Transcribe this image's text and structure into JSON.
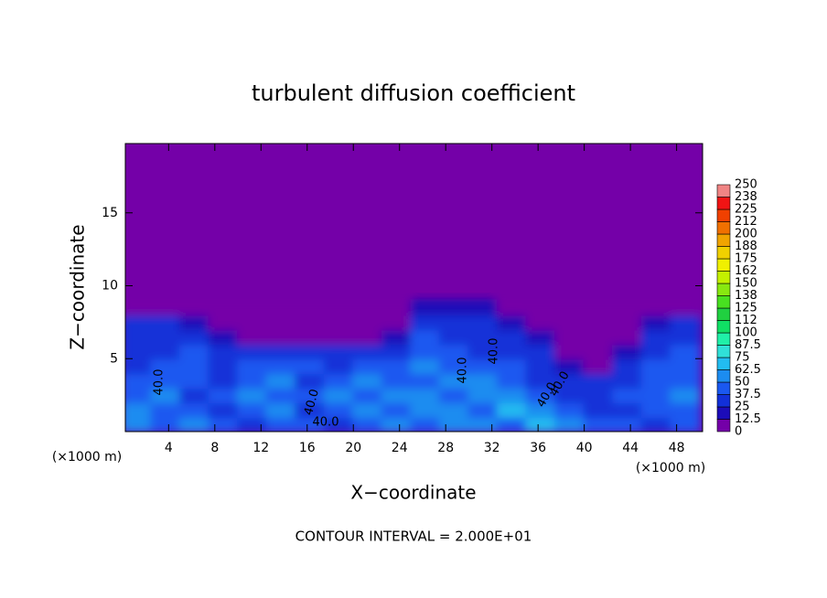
{
  "chart_data": {
    "type": "contour",
    "title": "turbulent diffusion coefficient",
    "x_label": "X−coordinate",
    "y_label": "Z−coordinate",
    "x_unit": "(×1000 m)",
    "x_unit_right": "(×1000 m)",
    "footer": "CONTOUR INTERVAL = 2.000E+01",
    "xlim": [
      0.25,
      50.25
    ],
    "ylim": [
      0,
      19.75
    ],
    "xticks": [
      4,
      8,
      12,
      16,
      20,
      24,
      28,
      32,
      36,
      40,
      44,
      48
    ],
    "yticks": [
      5,
      10,
      15
    ],
    "contour_labels": [
      "40.0",
      "40.0",
      "40.0",
      "40.0",
      "40.0",
      "40.0",
      "40.0"
    ],
    "field": {
      "x": [
        1.25,
        3.75,
        6.25,
        8.75,
        11.25,
        13.75,
        16.25,
        18.75,
        21.25,
        23.75,
        26.25,
        28.75,
        31.25,
        33.75,
        36.25,
        38.75,
        41.25,
        43.75,
        46.25,
        48.75
      ],
      "z": [
        0.5,
        1.5,
        2.5,
        3.5,
        4.5,
        5.5,
        6.5,
        7.5,
        8.5
      ],
      "values": [
        [
          55,
          45,
          50,
          40,
          35,
          45,
          40,
          35,
          45,
          50,
          40,
          60,
          55,
          45,
          70,
          50,
          45,
          40,
          35,
          40
        ],
        [
          50,
          40,
          45,
          35,
          45,
          55,
          35,
          40,
          55,
          45,
          60,
          50,
          45,
          65,
          50,
          40,
          35,
          30,
          40,
          45
        ],
        [
          45,
          50,
          35,
          40,
          55,
          40,
          45,
          50,
          40,
          55,
          50,
          45,
          60,
          50,
          40,
          30,
          35,
          40,
          45,
          50
        ],
        [
          40,
          45,
          40,
          35,
          45,
          50,
          35,
          45,
          55,
          40,
          45,
          55,
          50,
          45,
          35,
          30,
          25,
          35,
          45,
          40
        ],
        [
          35,
          40,
          45,
          30,
          40,
          45,
          40,
          35,
          45,
          40,
          50,
          45,
          40,
          40,
          30,
          20,
          10,
          30,
          40,
          45
        ],
        [
          35,
          35,
          40,
          30,
          35,
          35,
          30,
          30,
          30,
          35,
          45,
          40,
          35,
          35,
          25,
          10,
          0,
          20,
          35,
          40
        ],
        [
          35,
          30,
          30,
          20,
          10,
          5,
          10,
          5,
          5,
          20,
          40,
          35,
          35,
          30,
          15,
          0,
          0,
          10,
          30,
          35
        ],
        [
          30,
          25,
          15,
          5,
          0,
          0,
          0,
          0,
          0,
          5,
          30,
          35,
          30,
          20,
          5,
          0,
          0,
          0,
          20,
          30
        ],
        [
          0,
          0,
          0,
          0,
          0,
          0,
          0,
          0,
          0,
          0,
          15,
          20,
          15,
          0,
          0,
          0,
          0,
          0,
          0,
          0
        ]
      ]
    },
    "colorbar": {
      "ticks": [
        0,
        12.5,
        25,
        37.5,
        50,
        62.5,
        75,
        87.5,
        100,
        {
          "value": 112.5,
          "label": "112"
        },
        125,
        {
          "value": 137.5,
          "label": "138"
        },
        150,
        {
          "value": 162.5,
          "label": "162"
        },
        175,
        {
          "value": 187.5,
          "label": "188"
        },
        200,
        {
          "value": 212.5,
          "label": "212"
        },
        225,
        {
          "value": 237.5,
          "label": "238"
        },
        250
      ],
      "colors": [
        "#7400a8",
        "#1c0cb8",
        "#1230d8",
        "#1a58f0",
        "#1c8cf0",
        "#22bcf0",
        "#30e0d8",
        "#20f0a8",
        "#10e064",
        "#20d040",
        "#48e020",
        "#88e810",
        "#c4f000",
        "#f0f000",
        "#f0d000",
        "#f0a400",
        "#f07000",
        "#f04000",
        "#f01414",
        "#f08484"
      ]
    }
  }
}
